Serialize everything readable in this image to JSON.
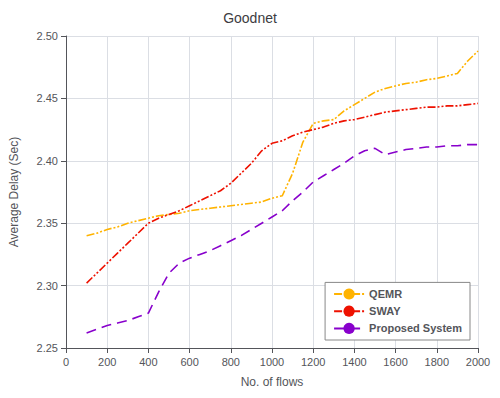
{
  "chart_data": {
    "type": "line",
    "title": "Goodnet",
    "xlabel": "No. of flows",
    "ylabel": "Average Delay (Sec)",
    "x": [
      100,
      150,
      200,
      250,
      300,
      350,
      400,
      450,
      500,
      550,
      600,
      650,
      700,
      750,
      800,
      850,
      900,
      950,
      1000,
      1050,
      1100,
      1150,
      1200,
      1250,
      1300,
      1350,
      1400,
      1450,
      1500,
      1550,
      1600,
      1650,
      1700,
      1750,
      1800,
      1850,
      1900,
      1950,
      2000
    ],
    "series": [
      {
        "name": "QEMR",
        "color": "#FFB300",
        "line_style": "dashdot",
        "values": [
          2.34,
          2.342,
          2.345,
          2.347,
          2.35,
          2.352,
          2.354,
          2.356,
          2.357,
          2.358,
          2.36,
          2.361,
          2.362,
          2.363,
          2.364,
          2.365,
          2.366,
          2.367,
          2.37,
          2.372,
          2.39,
          2.415,
          2.43,
          2.432,
          2.433,
          2.44,
          2.445,
          2.45,
          2.455,
          2.458,
          2.46,
          2.462,
          2.463,
          2.465,
          2.466,
          2.468,
          2.47,
          2.48,
          2.488
        ]
      },
      {
        "name": "SWAY",
        "color": "#EE1100",
        "line_style": "dashdot",
        "values": [
          2.302,
          2.31,
          2.318,
          2.326,
          2.334,
          2.342,
          2.35,
          2.354,
          2.357,
          2.36,
          2.364,
          2.368,
          2.372,
          2.376,
          2.382,
          2.39,
          2.398,
          2.408,
          2.414,
          2.416,
          2.42,
          2.423,
          2.425,
          2.427,
          2.43,
          2.432,
          2.433,
          2.435,
          2.437,
          2.439,
          2.44,
          2.441,
          2.442,
          2.443,
          2.443,
          2.444,
          2.444,
          2.445,
          2.446
        ]
      },
      {
        "name": "Proposed System",
        "color": "#8800CC",
        "line_style": "dashed",
        "values": [
          2.262,
          2.265,
          2.268,
          2.27,
          2.272,
          2.275,
          2.278,
          2.295,
          2.31,
          2.318,
          2.322,
          2.325,
          2.328,
          2.332,
          2.336,
          2.34,
          2.345,
          2.35,
          2.355,
          2.36,
          2.368,
          2.375,
          2.383,
          2.388,
          2.393,
          2.398,
          2.404,
          2.408,
          2.41,
          2.405,
          2.407,
          2.409,
          2.41,
          2.411,
          2.411,
          2.412,
          2.412,
          2.413,
          2.413
        ]
      }
    ],
    "xlim": [
      0,
      2000
    ],
    "ylim": [
      2.25,
      2.5
    ],
    "xticks": [
      0,
      200,
      400,
      600,
      800,
      1000,
      1200,
      1400,
      1600,
      1800,
      2000
    ],
    "yticks": [
      2.25,
      {
        "value": 2.3,
        "label": "2.30"
      },
      2.35,
      {
        "value": 2.4,
        "label": "2.40"
      },
      2.45,
      {
        "value": 2.5,
        "label": "2.50"
      }
    ],
    "grid": true,
    "legend": "lower right"
  }
}
